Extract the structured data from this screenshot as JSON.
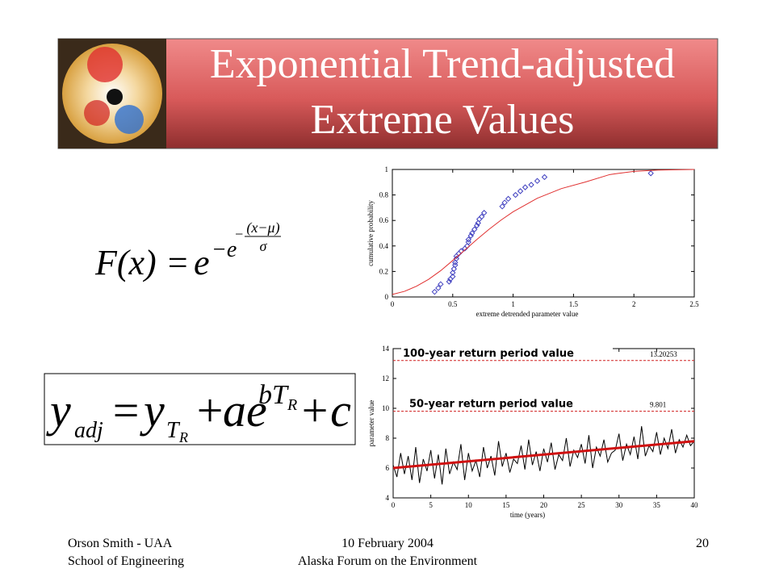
{
  "header": {
    "title": [
      "Exponential Trend-adjusted",
      "Extreme Values"
    ]
  },
  "formula_1": {
    "lhs": "F(x)",
    "eq": "=",
    "base": "e",
    "exp1": "−e",
    "exp2": "−",
    "num": "(x−μ)",
    "den": "σ"
  },
  "formula_2": {
    "y1": "y",
    "adj": "adj",
    "eq": "=",
    "y2": "y",
    "T1": "T",
    "R1": "R",
    "plus1": "+",
    "a": "ae",
    "b": "b",
    "T2": "T",
    "R2": "R",
    "plus2": "+c"
  },
  "chart_data": [
    {
      "type": "scatter",
      "xlabel": "extreme detrended parameter value",
      "ylabel": "cumulative probability",
      "xlim": [
        0,
        2.5
      ],
      "xticks": [
        0,
        0.5,
        1,
        1.5,
        2,
        2.5
      ],
      "ylim": [
        0,
        1
      ],
      "yticks": [
        0,
        0.2,
        0.4,
        0.6,
        0.8,
        1
      ],
      "series": [
        {
          "mode": "markers",
          "color": "#4040c0",
          "x": [
            0.35,
            0.38,
            0.4,
            0.47,
            0.48,
            0.5,
            0.5,
            0.51,
            0.52,
            0.52,
            0.53,
            0.53,
            0.55,
            0.57,
            0.6,
            0.62,
            0.63,
            0.63,
            0.65,
            0.66,
            0.68,
            0.7,
            0.71,
            0.72,
            0.74,
            0.76,
            0.91,
            0.93,
            0.96,
            1.02,
            1.06,
            1.1,
            1.15,
            1.2,
            1.26,
            2.14
          ],
          "values": [
            0.04,
            0.07,
            0.1,
            0.12,
            0.14,
            0.16,
            0.19,
            0.22,
            0.25,
            0.27,
            0.3,
            0.32,
            0.34,
            0.36,
            0.38,
            0.4,
            0.43,
            0.45,
            0.48,
            0.5,
            0.53,
            0.56,
            0.58,
            0.61,
            0.63,
            0.66,
            0.71,
            0.74,
            0.77,
            0.8,
            0.83,
            0.86,
            0.88,
            0.91,
            0.94,
            0.97
          ]
        },
        {
          "mode": "line",
          "color": "#e03030",
          "x": [
            0,
            0.1,
            0.2,
            0.3,
            0.4,
            0.5,
            0.6,
            0.7,
            0.8,
            0.9,
            1.0,
            1.2,
            1.4,
            1.6,
            1.8,
            2.0,
            2.2,
            2.5
          ],
          "values": [
            0.02,
            0.044,
            0.084,
            0.138,
            0.206,
            0.286,
            0.368,
            0.451,
            0.53,
            0.603,
            0.668,
            0.774,
            0.85,
            0.902,
            0.96,
            0.985,
            0.995,
            1.0
          ]
        }
      ]
    },
    {
      "type": "line",
      "xlabel": "time (years)",
      "ylabel": "parameter value",
      "xlim": [
        0,
        40
      ],
      "xticks": [
        0,
        5,
        10,
        15,
        20,
        25,
        30,
        35,
        40
      ],
      "ylim": [
        4,
        14
      ],
      "yticks": [
        4,
        6,
        8,
        10,
        12,
        14
      ],
      "annotations": [
        {
          "text": "100-year return period value",
          "value": 13.20253
        },
        {
          "text": "50-year return period value",
          "value": 9.801
        }
      ],
      "series": [
        {
          "mode": "line",
          "color": "#000000",
          "width": 1,
          "x": [
            0,
            0.5,
            1,
            1.5,
            2,
            2.5,
            3,
            3.5,
            4,
            4.5,
            5,
            5.5,
            6,
            6.5,
            7,
            7.5,
            8,
            8.5,
            9,
            9.5,
            10,
            10.5,
            11,
            11.5,
            12,
            12.5,
            13,
            13.5,
            14,
            14.5,
            15,
            15.5,
            16,
            16.5,
            17,
            17.5,
            18,
            18.5,
            19,
            19.5,
            20,
            20.5,
            21,
            21.5,
            22,
            22.5,
            23,
            23.5,
            24,
            24.5,
            25,
            25.5,
            26,
            26.5,
            27,
            27.5,
            28,
            28.5,
            29,
            29.5,
            30,
            30.5,
            31,
            31.5,
            32,
            32.5,
            33,
            33.5,
            34,
            34.5,
            35,
            35.5,
            36,
            36.5,
            37,
            37.5,
            38,
            38.5,
            39,
            39.5,
            40
          ],
          "values": [
            6.2,
            5.4,
            7.0,
            5.6,
            6.8,
            5.2,
            7.4,
            5.0,
            6.6,
            5.8,
            7.2,
            5.3,
            6.9,
            4.9,
            7.3,
            5.6,
            6.4,
            5.9,
            7.6,
            5.2,
            7.0,
            5.8,
            6.5,
            5.4,
            7.4,
            6.0,
            6.8,
            5.5,
            7.8,
            6.1,
            7.0,
            5.7,
            6.6,
            6.3,
            7.5,
            5.9,
            7.9,
            6.2,
            7.1,
            5.8,
            7.3,
            6.4,
            7.7,
            5.9,
            6.9,
            6.5,
            8.0,
            6.1,
            7.2,
            6.7,
            7.6,
            6.3,
            8.2,
            6.0,
            7.4,
            6.8,
            7.9,
            6.4,
            7.0,
            7.2,
            8.3,
            6.5,
            7.6,
            6.9,
            8.1,
            6.6,
            8.8,
            6.8,
            7.5,
            7.1,
            8.4,
            6.9,
            8.0,
            7.3,
            8.6,
            7.0,
            7.9,
            7.4,
            8.2,
            7.5,
            7.8
          ]
        },
        {
          "mode": "line",
          "color": "#d01010",
          "width": 3,
          "x": [
            0,
            40
          ],
          "values": [
            6.0,
            7.8
          ]
        }
      ]
    }
  ],
  "footer": {
    "left": [
      "Orson Smith - UAA",
      "School of Engineering"
    ],
    "center": [
      "10 February 2004",
      "Alaska Forum on the Environment"
    ],
    "page": "20"
  }
}
